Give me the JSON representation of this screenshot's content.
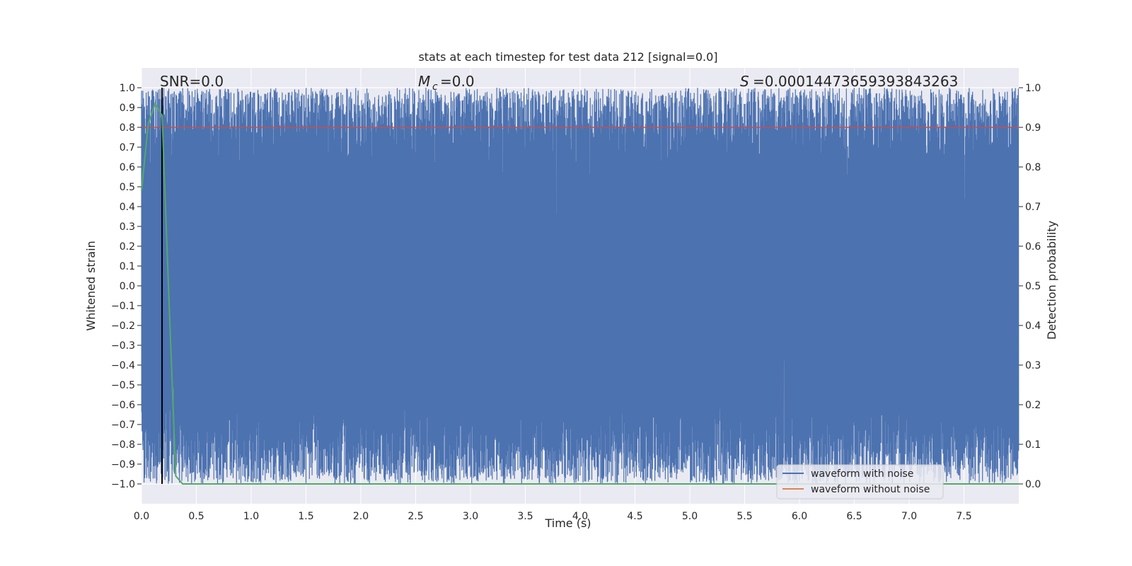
{
  "chart_data": {
    "type": "line",
    "title": "stats at each timestep for test data 212 [signal=0.0]",
    "xlabel": "Time (s)",
    "ylabel": "Whitened strain",
    "y2label": "Detection probability",
    "xlim": [
      0,
      8
    ],
    "ylim": [
      -1.1,
      1.1
    ],
    "y2lim": [
      -0.05,
      1.05
    ],
    "grid": true,
    "xticks": [
      "0.0",
      "0.5",
      "1.0",
      "1.5",
      "2.0",
      "2.5",
      "3.0",
      "3.5",
      "4.0",
      "4.5",
      "5.0",
      "5.5",
      "6.0",
      "6.5",
      "7.0",
      "7.5"
    ],
    "yticks": [
      "1.0",
      "0.9",
      "0.8",
      "0.7",
      "0.6",
      "0.5",
      "0.4",
      "0.3",
      "0.2",
      "0.1",
      "0.0",
      "−0.1",
      "−0.2",
      "−0.3",
      "−0.4",
      "−0.5",
      "−0.6",
      "−0.7",
      "−0.8",
      "−0.9",
      "−1.0"
    ],
    "y2ticks": [
      "1.0",
      "0.9",
      "0.8",
      "0.7",
      "0.6",
      "0.5",
      "0.4",
      "0.3",
      "0.2",
      "0.1",
      "0.0"
    ],
    "annotations": {
      "snr": "SNR=0.0",
      "mc_symbol": "M",
      "mc_sub": "c",
      "mc_value": "=0.0",
      "s_symbol": "S",
      "s_value": "=0.00014473659393843263"
    },
    "series": [
      {
        "name": "waveform with noise",
        "color": "#4c72b0",
        "kind": "noise",
        "envelope_upper": [
          0.6,
          1.0
        ],
        "envelope_lower": [
          -1.0,
          -0.6
        ]
      },
      {
        "name": "waveform without noise",
        "color": "#dd8452",
        "values": []
      },
      {
        "name": "detection probability",
        "color": "#55a868",
        "axis": "right",
        "x": [
          0,
          0.0625,
          0.125,
          0.1875,
          0.25,
          0.3125,
          0.375,
          8.0
        ],
        "y": [
          0.74,
          0.91,
          0.96,
          0.93,
          0.47,
          0.02,
          0.0,
          0.0
        ]
      },
      {
        "name": "threshold",
        "color": "#c44e52",
        "kind": "hline",
        "y": 0.8
      },
      {
        "name": "marker",
        "color": "#000000",
        "kind": "vline",
        "x": 0.1875
      }
    ],
    "legend": {
      "placement": "lower-right",
      "entries": [
        "waveform with noise",
        "waveform without noise"
      ]
    }
  }
}
